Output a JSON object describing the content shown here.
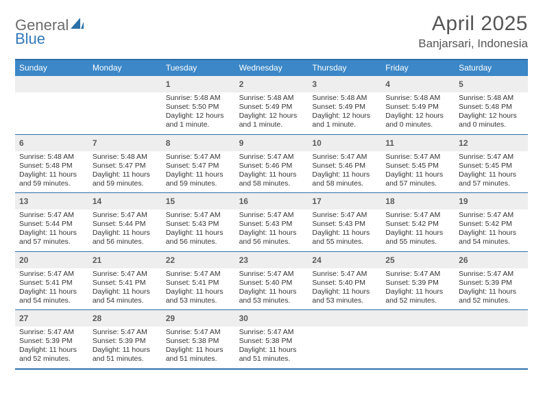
{
  "brand": {
    "part1": "General",
    "part2": "Blue"
  },
  "title": "April 2025",
  "location": "Banjarsari, Indonesia",
  "colors": {
    "header_bg": "#3b87c7",
    "border": "#2b6fa8",
    "band": "#eeeeee",
    "text": "#333333",
    "logo_gray": "#6b6b6b",
    "logo_blue": "#3378b8"
  },
  "typography": {
    "title_fontsize": 30,
    "location_fontsize": 17,
    "dow_fontsize": 12,
    "daynum_fontsize": 12,
    "body_fontsize": 10.5
  },
  "dow": [
    "Sunday",
    "Monday",
    "Tuesday",
    "Wednesday",
    "Thursday",
    "Friday",
    "Saturday"
  ],
  "weeks": [
    [
      null,
      null,
      {
        "n": "1",
        "sr": "Sunrise: 5:48 AM",
        "ss": "Sunset: 5:50 PM",
        "dl": "Daylight: 12 hours and 1 minute."
      },
      {
        "n": "2",
        "sr": "Sunrise: 5:48 AM",
        "ss": "Sunset: 5:49 PM",
        "dl": "Daylight: 12 hours and 1 minute."
      },
      {
        "n": "3",
        "sr": "Sunrise: 5:48 AM",
        "ss": "Sunset: 5:49 PM",
        "dl": "Daylight: 12 hours and 1 minute."
      },
      {
        "n": "4",
        "sr": "Sunrise: 5:48 AM",
        "ss": "Sunset: 5:49 PM",
        "dl": "Daylight: 12 hours and 0 minutes."
      },
      {
        "n": "5",
        "sr": "Sunrise: 5:48 AM",
        "ss": "Sunset: 5:48 PM",
        "dl": "Daylight: 12 hours and 0 minutes."
      }
    ],
    [
      {
        "n": "6",
        "sr": "Sunrise: 5:48 AM",
        "ss": "Sunset: 5:48 PM",
        "dl": "Daylight: 11 hours and 59 minutes."
      },
      {
        "n": "7",
        "sr": "Sunrise: 5:48 AM",
        "ss": "Sunset: 5:47 PM",
        "dl": "Daylight: 11 hours and 59 minutes."
      },
      {
        "n": "8",
        "sr": "Sunrise: 5:47 AM",
        "ss": "Sunset: 5:47 PM",
        "dl": "Daylight: 11 hours and 59 minutes."
      },
      {
        "n": "9",
        "sr": "Sunrise: 5:47 AM",
        "ss": "Sunset: 5:46 PM",
        "dl": "Daylight: 11 hours and 58 minutes."
      },
      {
        "n": "10",
        "sr": "Sunrise: 5:47 AM",
        "ss": "Sunset: 5:46 PM",
        "dl": "Daylight: 11 hours and 58 minutes."
      },
      {
        "n": "11",
        "sr": "Sunrise: 5:47 AM",
        "ss": "Sunset: 5:45 PM",
        "dl": "Daylight: 11 hours and 57 minutes."
      },
      {
        "n": "12",
        "sr": "Sunrise: 5:47 AM",
        "ss": "Sunset: 5:45 PM",
        "dl": "Daylight: 11 hours and 57 minutes."
      }
    ],
    [
      {
        "n": "13",
        "sr": "Sunrise: 5:47 AM",
        "ss": "Sunset: 5:44 PM",
        "dl": "Daylight: 11 hours and 57 minutes."
      },
      {
        "n": "14",
        "sr": "Sunrise: 5:47 AM",
        "ss": "Sunset: 5:44 PM",
        "dl": "Daylight: 11 hours and 56 minutes."
      },
      {
        "n": "15",
        "sr": "Sunrise: 5:47 AM",
        "ss": "Sunset: 5:43 PM",
        "dl": "Daylight: 11 hours and 56 minutes."
      },
      {
        "n": "16",
        "sr": "Sunrise: 5:47 AM",
        "ss": "Sunset: 5:43 PM",
        "dl": "Daylight: 11 hours and 56 minutes."
      },
      {
        "n": "17",
        "sr": "Sunrise: 5:47 AM",
        "ss": "Sunset: 5:43 PM",
        "dl": "Daylight: 11 hours and 55 minutes."
      },
      {
        "n": "18",
        "sr": "Sunrise: 5:47 AM",
        "ss": "Sunset: 5:42 PM",
        "dl": "Daylight: 11 hours and 55 minutes."
      },
      {
        "n": "19",
        "sr": "Sunrise: 5:47 AM",
        "ss": "Sunset: 5:42 PM",
        "dl": "Daylight: 11 hours and 54 minutes."
      }
    ],
    [
      {
        "n": "20",
        "sr": "Sunrise: 5:47 AM",
        "ss": "Sunset: 5:41 PM",
        "dl": "Daylight: 11 hours and 54 minutes."
      },
      {
        "n": "21",
        "sr": "Sunrise: 5:47 AM",
        "ss": "Sunset: 5:41 PM",
        "dl": "Daylight: 11 hours and 54 minutes."
      },
      {
        "n": "22",
        "sr": "Sunrise: 5:47 AM",
        "ss": "Sunset: 5:41 PM",
        "dl": "Daylight: 11 hours and 53 minutes."
      },
      {
        "n": "23",
        "sr": "Sunrise: 5:47 AM",
        "ss": "Sunset: 5:40 PM",
        "dl": "Daylight: 11 hours and 53 minutes."
      },
      {
        "n": "24",
        "sr": "Sunrise: 5:47 AM",
        "ss": "Sunset: 5:40 PM",
        "dl": "Daylight: 11 hours and 53 minutes."
      },
      {
        "n": "25",
        "sr": "Sunrise: 5:47 AM",
        "ss": "Sunset: 5:39 PM",
        "dl": "Daylight: 11 hours and 52 minutes."
      },
      {
        "n": "26",
        "sr": "Sunrise: 5:47 AM",
        "ss": "Sunset: 5:39 PM",
        "dl": "Daylight: 11 hours and 52 minutes."
      }
    ],
    [
      {
        "n": "27",
        "sr": "Sunrise: 5:47 AM",
        "ss": "Sunset: 5:39 PM",
        "dl": "Daylight: 11 hours and 52 minutes."
      },
      {
        "n": "28",
        "sr": "Sunrise: 5:47 AM",
        "ss": "Sunset: 5:39 PM",
        "dl": "Daylight: 11 hours and 51 minutes."
      },
      {
        "n": "29",
        "sr": "Sunrise: 5:47 AM",
        "ss": "Sunset: 5:38 PM",
        "dl": "Daylight: 11 hours and 51 minutes."
      },
      {
        "n": "30",
        "sr": "Sunrise: 5:47 AM",
        "ss": "Sunset: 5:38 PM",
        "dl": "Daylight: 11 hours and 51 minutes."
      },
      null,
      null,
      null
    ]
  ]
}
